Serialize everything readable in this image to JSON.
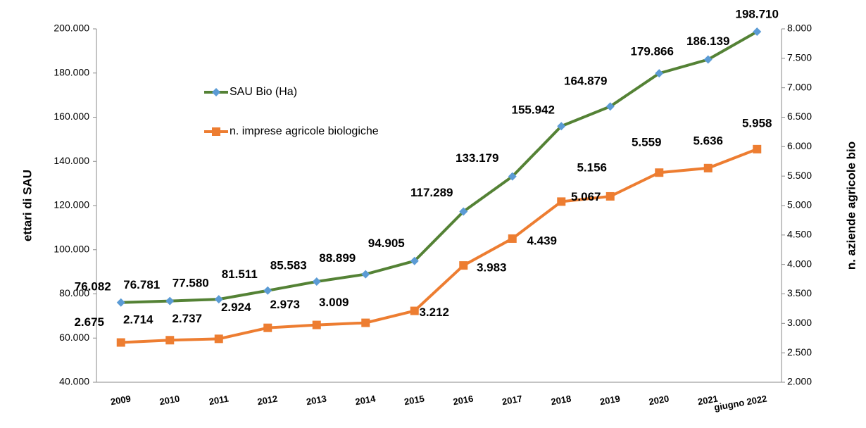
{
  "chart_data": {
    "type": "line",
    "categories": [
      "2009",
      "2010",
      "2011",
      "2012",
      "2013",
      "2014",
      "2015",
      "2016",
      "2017",
      "2018",
      "2019",
      "2020",
      "2021",
      "giugno 2022"
    ],
    "ylabel": "ettari di SAU",
    "y2label": "n. aziende agricole bio",
    "ylim": [
      40000,
      200000
    ],
    "yticks": [
      {
        "value": 40000,
        "label": "40.000"
      },
      {
        "value": 60000,
        "label": "60.000"
      },
      {
        "value": 80000,
        "label": "80.000"
      },
      {
        "value": 100000,
        "label": "100.000"
      },
      {
        "value": 120000,
        "label": "120.000"
      },
      {
        "value": 140000,
        "label": "140.000"
      },
      {
        "value": 160000,
        "label": "160.000"
      },
      {
        "value": 180000,
        "label": "180.000"
      },
      {
        "value": 200000,
        "label": "200.000"
      }
    ],
    "y2lim": [
      2000,
      8000
    ],
    "y2ticks": [
      {
        "value": 2000,
        "label": "2.000"
      },
      {
        "value": 2500,
        "label": "2.500"
      },
      {
        "value": 3000,
        "label": "3.000"
      },
      {
        "value": 3500,
        "label": "3.500"
      },
      {
        "value": 4000,
        "label": "4.000"
      },
      {
        "value": 4500,
        "label": "4.500"
      },
      {
        "value": 5000,
        "label": "5.000"
      },
      {
        "value": 5500,
        "label": "5.500"
      },
      {
        "value": 6000,
        "label": "6.000"
      },
      {
        "value": 6500,
        "label": "6.500"
      },
      {
        "value": 7000,
        "label": "7.000"
      },
      {
        "value": 7500,
        "label": "7.500"
      },
      {
        "value": 8000,
        "label": "8.000"
      }
    ],
    "series": [
      {
        "name": "SAU Bio (Ha)",
        "color": "#548235",
        "marker_color": "#5b9bd5",
        "marker": "diamond",
        "axis": "y",
        "values": [
          76082,
          76781,
          77580,
          81511,
          85583,
          88899,
          94905,
          117289,
          133179,
          155942,
          164879,
          179866,
          186139,
          198710
        ],
        "value_labels": [
          "76.082",
          "76.781",
          "77.580",
          "81.511",
          "85.583",
          "88.899",
          "94.905",
          "117.289",
          "133.179",
          "155.942",
          "164.879",
          "179.866",
          "186.139",
          "198.710"
        ]
      },
      {
        "name": "n. imprese agricole biologiche",
        "color": "#ed7d31",
        "marker_color": "#ed7d31",
        "marker": "square",
        "axis": "y2",
        "values": [
          2675,
          2714,
          2737,
          2924,
          2973,
          3009,
          3212,
          3983,
          4439,
          5067,
          5156,
          5559,
          5636,
          5958
        ],
        "value_labels": [
          "2.675",
          "2.714",
          "2.737",
          "2.924",
          "2.973",
          "3.009",
          "3.212",
          "3.983",
          "4.439",
          "5.067",
          "5.156",
          "5.559",
          "5.636",
          "5.958"
        ]
      }
    ],
    "legend": "upper left"
  }
}
